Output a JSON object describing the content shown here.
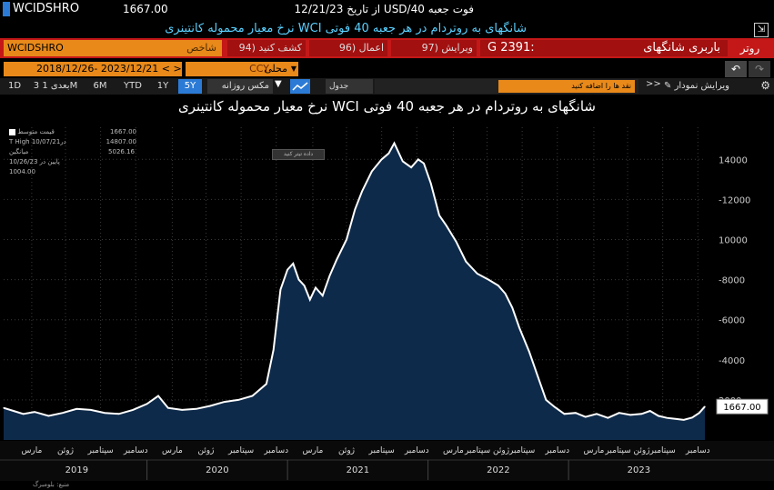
{
  "header": {
    "ticker": "WCIDSHRO",
    "price": "1667.00",
    "date_line": "از تاریخ 12/21/23 USD/40 فوت جعبه",
    "subtitle": "نرخ معیار محموله کانتینری WCI شانگهای به روتردام در هر جعبه 40 فوتی",
    "export_icon": "export-icon"
  },
  "toolbar": {
    "ticker_field": "WCIDSHRO",
    "ticker_label": "شاخص",
    "drill": "94) کشف کنید",
    "actions": "96) اعمال",
    "edit": "97) ویرایش",
    "fleet_code": "G 2391:",
    "fleet_name": "باربری شانگهای",
    "go_label": "روتر"
  },
  "range_bar": {
    "date_range": "2018/12/26- 2023/12/21",
    "nav": "< >",
    "ccy_value": "CCY",
    "ccy_label": "محلی"
  },
  "period_bar": {
    "periods": [
      "1D",
      "3 بعدی 1M",
      "6M",
      "YTD",
      "1Y",
      "5Y"
    ],
    "active": "5Y",
    "mode": "مکس روزانه",
    "table": "جدول",
    "annotate": "نقد ها را اضافه کنید",
    "chevrons": ">>",
    "draw": "ویرایش نمودار"
  },
  "legend": {
    "title": "قیمت متوسط",
    "title_val": "1667.00",
    "high_label": "T High در10/07/21",
    "high_val": "14807.00",
    "avg_label": "میانگین",
    "avg_val": "5026.16",
    "low_label": "پایین در 10/26/23",
    "low_val": "1004.00",
    "tooltip": "داده تیتر کنید"
  },
  "source": "منبع: بلومبرگ",
  "colors": {
    "fill": "#0e2a4a",
    "line": "#ffffff",
    "accent": "#e8891a",
    "bar_red": "#c41818",
    "active_blue": "#2b7bd6"
  },
  "chart_data": {
    "type": "area",
    "title": "نرخ معیار محموله کانتینری WCI شانگهای به روتردام در هر جعبه 40 فوتی",
    "ylim": [
      0,
      15600
    ],
    "yticks": [
      {
        "value": 14000,
        "label": "14000"
      },
      {
        "value": 12000,
        "label": "-12000"
      },
      {
        "value": 10000,
        "label": "10000"
      },
      {
        "value": 8000,
        "label": "-8000"
      },
      {
        "value": 6000,
        "label": "-6000"
      },
      {
        "value": 4000,
        "label": "-4000"
      },
      {
        "value": 2000,
        "label": "2000"
      }
    ],
    "last_value": "1667.00",
    "x_range": [
      2018.98,
      2023.97
    ],
    "month_labels": [
      {
        "t": 2019.18,
        "label": "مارس"
      },
      {
        "t": 2019.42,
        "label": "ژوئن"
      },
      {
        "t": 2019.67,
        "label": "سپتامبر"
      },
      {
        "t": 2019.92,
        "label": "دسامبر"
      },
      {
        "t": 2020.18,
        "label": "مارس"
      },
      {
        "t": 2020.42,
        "label": "ژوئن"
      },
      {
        "t": 2020.67,
        "label": "سپتامبر"
      },
      {
        "t": 2020.92,
        "label": "دسامبر"
      },
      {
        "t": 2021.18,
        "label": "مارس"
      },
      {
        "t": 2021.42,
        "label": "ژوئن"
      },
      {
        "t": 2021.67,
        "label": "سپتامبر"
      },
      {
        "t": 2021.92,
        "label": "دسامبر"
      },
      {
        "t": 2022.18,
        "label": "مارس"
      },
      {
        "t": 2022.42,
        "label": "ژوئن سپتامبر"
      },
      {
        "t": 2022.67,
        "label": "سپتامبر"
      },
      {
        "t": 2022.92,
        "label": "دسامبر"
      },
      {
        "t": 2023.18,
        "label": "مارس"
      },
      {
        "t": 2023.42,
        "label": "ژوئن سپتامبر"
      },
      {
        "t": 2023.67,
        "label": "سپتامبر"
      },
      {
        "t": 2023.92,
        "label": "دسامبر"
      }
    ],
    "year_labels": [
      {
        "t": 2019.5,
        "label": "2019"
      },
      {
        "t": 2020.5,
        "label": "2020"
      },
      {
        "t": 2021.5,
        "label": "2021"
      },
      {
        "t": 2022.5,
        "label": "2022"
      },
      {
        "t": 2023.5,
        "label": "2023"
      }
    ],
    "series": [
      {
        "points": [
          [
            2018.98,
            1600
          ],
          [
            2019.05,
            1450
          ],
          [
            2019.12,
            1300
          ],
          [
            2019.2,
            1400
          ],
          [
            2019.3,
            1200
          ],
          [
            2019.4,
            1350
          ],
          [
            2019.5,
            1550
          ],
          [
            2019.6,
            1500
          ],
          [
            2019.7,
            1350
          ],
          [
            2019.8,
            1300
          ],
          [
            2019.9,
            1500
          ],
          [
            2020.0,
            1800
          ],
          [
            2020.08,
            2200
          ],
          [
            2020.15,
            1600
          ],
          [
            2020.25,
            1500
          ],
          [
            2020.35,
            1550
          ],
          [
            2020.45,
            1700
          ],
          [
            2020.55,
            1900
          ],
          [
            2020.65,
            2000
          ],
          [
            2020.75,
            2200
          ],
          [
            2020.85,
            2800
          ],
          [
            2020.9,
            4500
          ],
          [
            2020.95,
            7500
          ],
          [
            2021.0,
            8500
          ],
          [
            2021.04,
            8800
          ],
          [
            2021.08,
            8000
          ],
          [
            2021.12,
            7700
          ],
          [
            2021.16,
            7000
          ],
          [
            2021.2,
            7600
          ],
          [
            2021.25,
            7200
          ],
          [
            2021.3,
            8200
          ],
          [
            2021.35,
            9000
          ],
          [
            2021.42,
            10000
          ],
          [
            2021.48,
            11500
          ],
          [
            2021.53,
            12400
          ],
          [
            2021.6,
            13400
          ],
          [
            2021.67,
            14000
          ],
          [
            2021.72,
            14300
          ],
          [
            2021.76,
            14807
          ],
          [
            2021.82,
            13900
          ],
          [
            2021.88,
            13600
          ],
          [
            2021.93,
            14000
          ],
          [
            2021.97,
            13800
          ],
          [
            2022.02,
            12800
          ],
          [
            2022.08,
            11200
          ],
          [
            2022.13,
            10700
          ],
          [
            2022.2,
            9900
          ],
          [
            2022.27,
            8900
          ],
          [
            2022.35,
            8300
          ],
          [
            2022.43,
            8000
          ],
          [
            2022.5,
            7700
          ],
          [
            2022.55,
            7300
          ],
          [
            2022.6,
            6600
          ],
          [
            2022.65,
            5600
          ],
          [
            2022.72,
            4400
          ],
          [
            2022.78,
            3200
          ],
          [
            2022.84,
            2000
          ],
          [
            2022.9,
            1650
          ],
          [
            2022.97,
            1300
          ],
          [
            2023.05,
            1350
          ],
          [
            2023.12,
            1150
          ],
          [
            2023.2,
            1300
          ],
          [
            2023.28,
            1100
          ],
          [
            2023.36,
            1350
          ],
          [
            2023.44,
            1250
          ],
          [
            2023.52,
            1300
          ],
          [
            2023.58,
            1450
          ],
          [
            2023.64,
            1200
          ],
          [
            2023.7,
            1100
          ],
          [
            2023.76,
            1050
          ],
          [
            2023.82,
            1004
          ],
          [
            2023.88,
            1120
          ],
          [
            2023.93,
            1350
          ],
          [
            2023.97,
            1667
          ]
        ]
      }
    ]
  }
}
